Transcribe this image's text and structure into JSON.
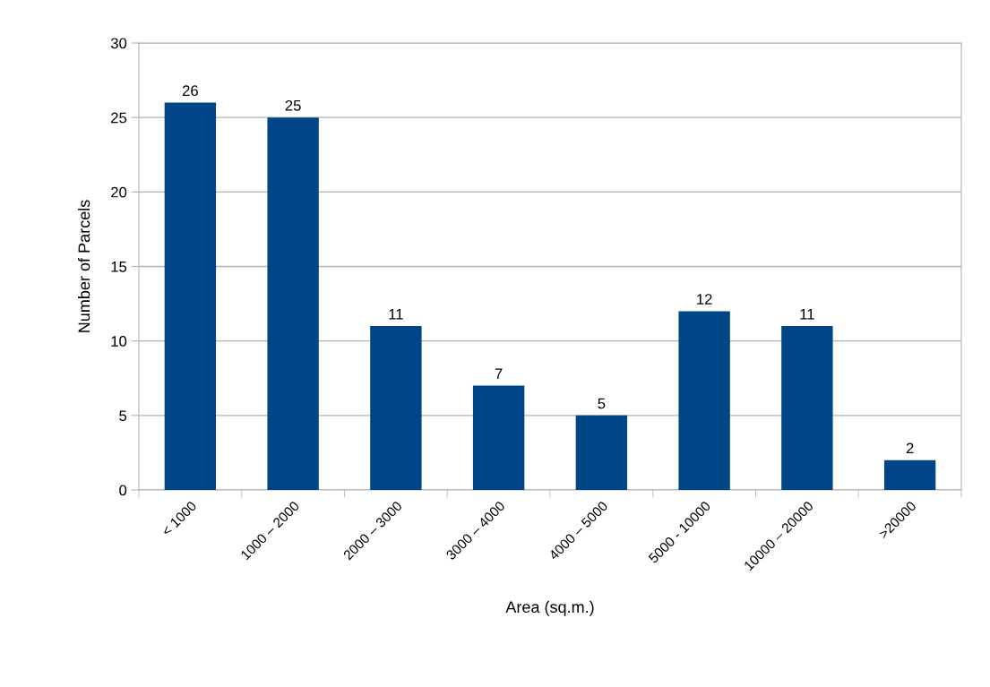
{
  "chart_data": {
    "type": "bar",
    "xlabel": "Area (sq.m.)",
    "ylabel": "Number of Parcels",
    "categories": [
      "< 1000",
      "1000 – 2000",
      "2000 – 3000",
      "3000 – 4000",
      "4000 – 5000",
      "5000 - 10000",
      "10000 – 20000",
      ">20000"
    ],
    "values": [
      26,
      25,
      11,
      7,
      5,
      12,
      11,
      2
    ],
    "color": "#004586",
    "ylim": [
      0,
      30
    ],
    "yticks": [
      0,
      5,
      10,
      15,
      20,
      25,
      30
    ],
    "grid": "y",
    "data_labels": true
  }
}
